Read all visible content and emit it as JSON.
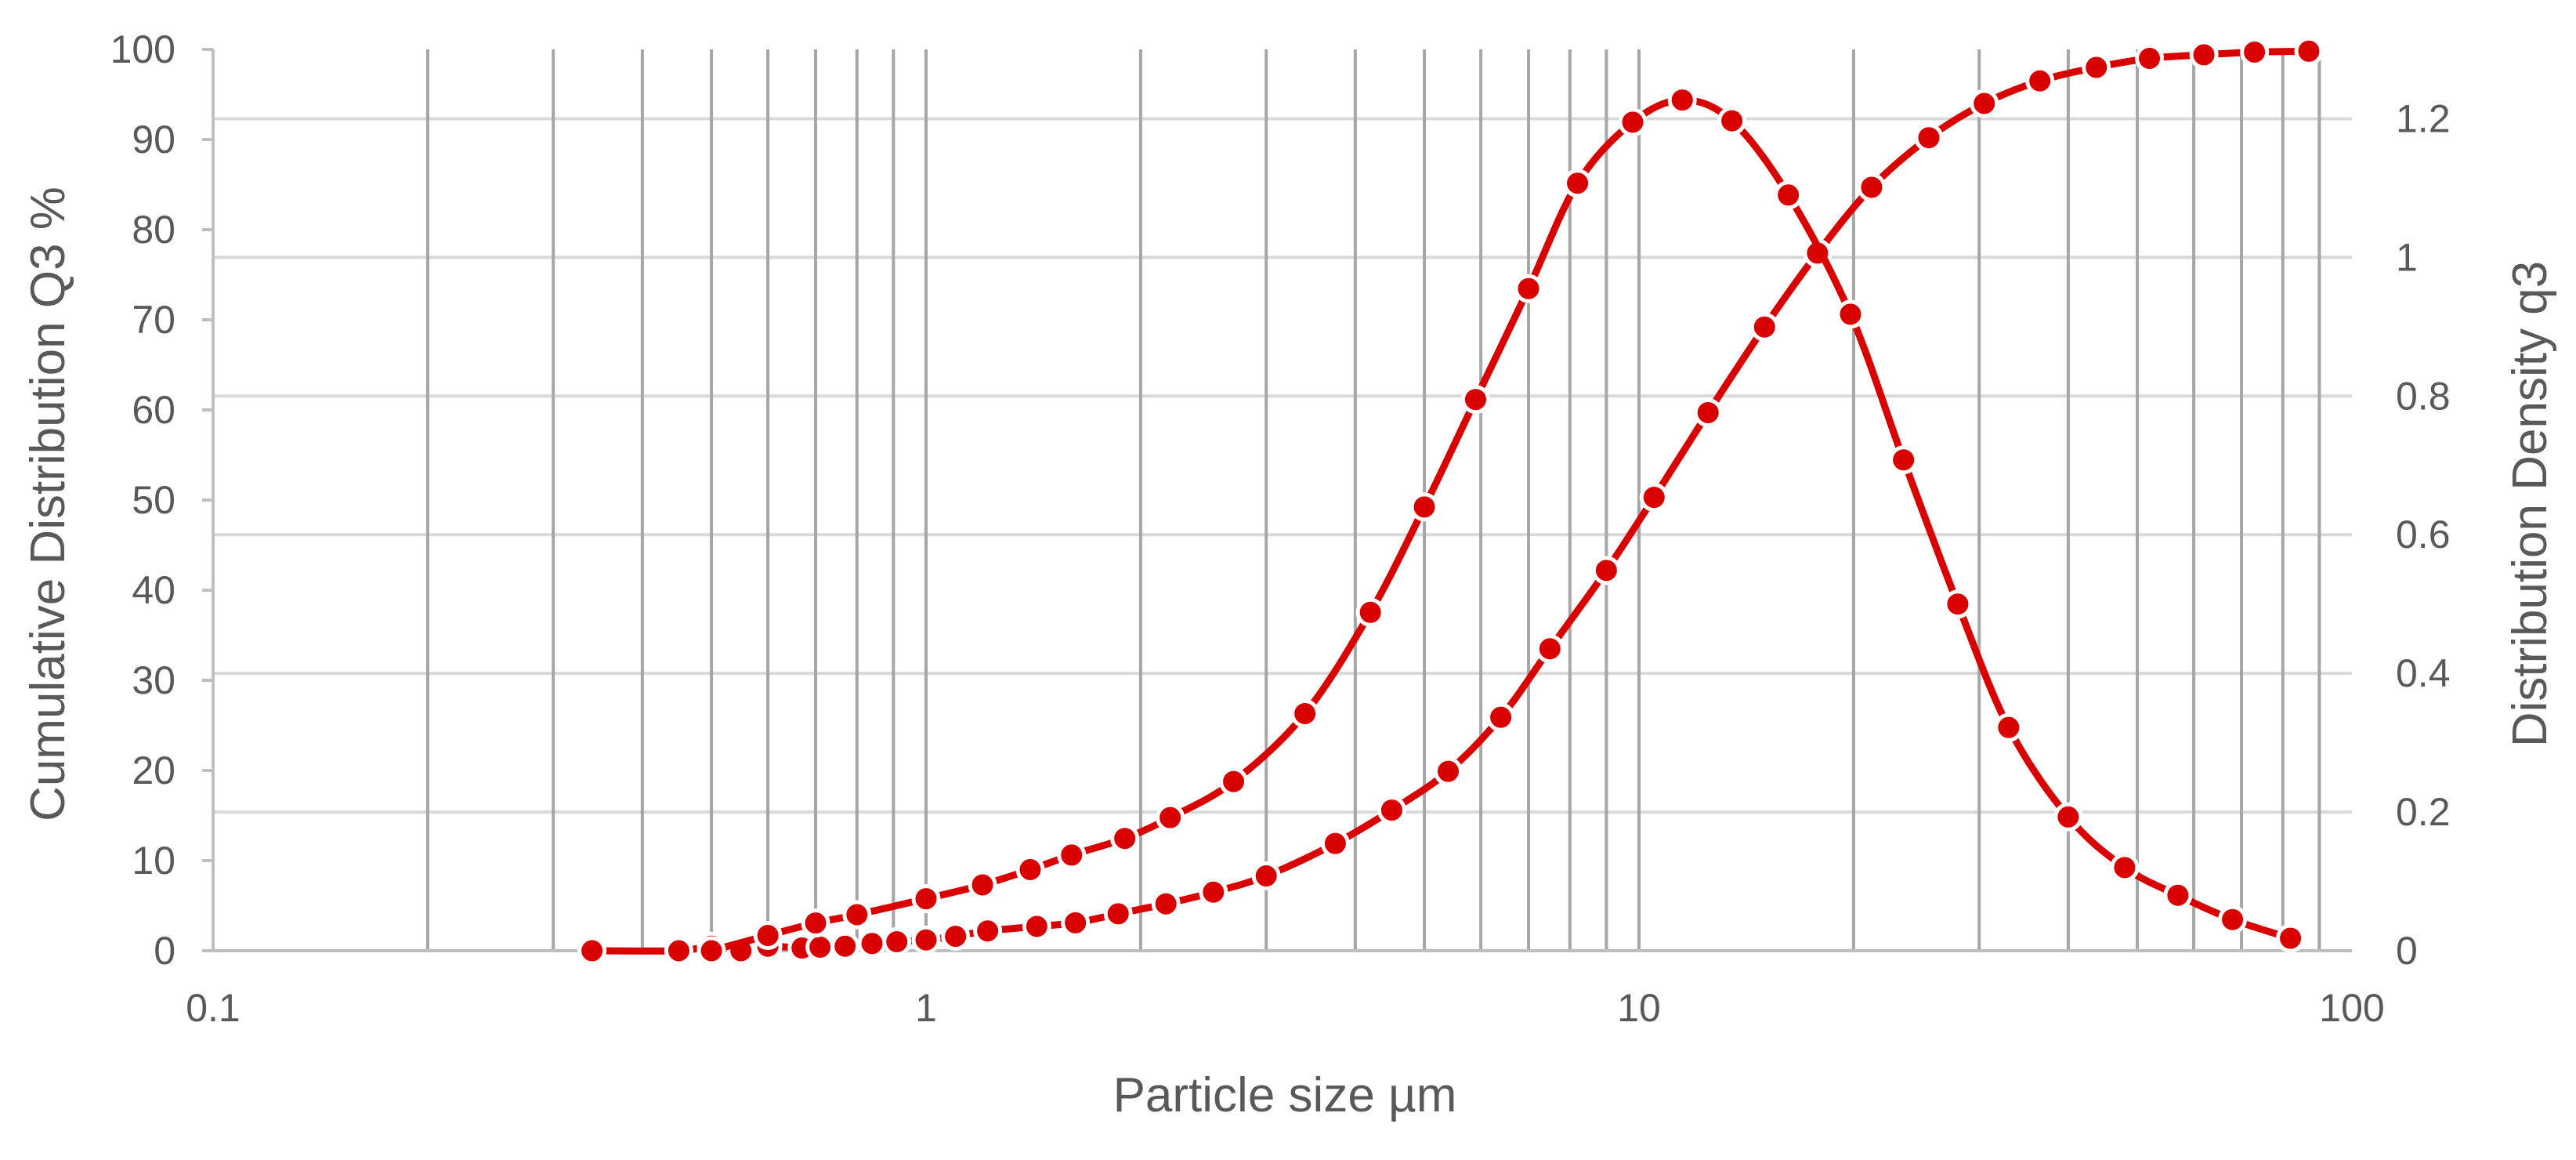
{
  "chart_data": {
    "type": "line",
    "title": "",
    "xlabel": "Particle size µm",
    "ylabel_left": "Cumulative Distribution Q3 %",
    "ylabel_right": "Distribution Density q3",
    "x_scale": "log",
    "xlim": [
      0.1,
      100
    ],
    "ylim_left": [
      0,
      100
    ],
    "ylim_right": [
      0,
      1.3
    ],
    "x_ticks": [
      {
        "value": 0.1,
        "label": "0.1"
      },
      {
        "value": 1,
        "label": "1"
      },
      {
        "value": 10,
        "label": "10"
      },
      {
        "value": 100,
        "label": "100"
      }
    ],
    "y_left_ticks": [
      "0",
      "10",
      "20",
      "30",
      "40",
      "50",
      "60",
      "70",
      "80",
      "90",
      "100"
    ],
    "y_right_ticks": [
      {
        "value": 0,
        "label": "0"
      },
      {
        "value": 0.2,
        "label": "0.2"
      },
      {
        "value": 0.4,
        "label": "0.4"
      },
      {
        "value": 0.6,
        "label": "0.6"
      },
      {
        "value": 0.8,
        "label": "0.8"
      },
      {
        "value": 1,
        "label": "1"
      },
      {
        "value": 1.2,
        "label": "1.2"
      }
    ],
    "grid": true,
    "legend": "none",
    "series": [
      {
        "axis": "left",
        "color": "#d90000",
        "x": [
          0.34,
          0.45,
          0.5,
          0.55,
          0.6,
          0.67,
          0.71,
          0.77,
          0.84,
          0.91,
          1.0,
          1.1,
          1.22,
          1.43,
          1.62,
          1.86,
          2.17,
          2.53,
          3.0,
          3.75,
          4.5,
          5.4,
          6.4,
          7.5,
          9.0,
          10.5,
          12.5,
          15.0,
          17.8,
          21.2,
          25.5,
          30.5,
          36.5,
          43.8,
          52.0,
          62.0,
          73.0,
          87.0
        ],
        "y": [
          0.0,
          0.0,
          0.5,
          0.0,
          0.5,
          0.3,
          0.4,
          0.5,
          0.8,
          1.0,
          1.2,
          1.6,
          2.2,
          2.7,
          3.1,
          4.1,
          5.2,
          6.5,
          8.3,
          11.9,
          15.6,
          19.9,
          25.9,
          33.5,
          42.2,
          50.3,
          59.7,
          69.2,
          77.4,
          84.7,
          90.2,
          94.0,
          96.5,
          98.0,
          99.0,
          99.4,
          99.7,
          99.8
        ]
      },
      {
        "axis": "right",
        "color": "#d90000",
        "x": [
          0.5,
          0.6,
          0.7,
          0.8,
          1.0,
          1.2,
          1.4,
          1.6,
          1.9,
          2.2,
          2.7,
          3.4,
          4.2,
          5.0,
          5.9,
          7.0,
          8.2,
          9.8,
          11.5,
          13.5,
          16.2,
          19.8,
          23.5,
          28.0,
          33.0,
          40.0,
          48.0,
          57.0,
          68.0,
          82.0
        ],
        "y": [
          0.0,
          0.022,
          0.04,
          0.052,
          0.075,
          0.095,
          0.117,
          0.138,
          0.162,
          0.192,
          0.244,
          0.342,
          0.488,
          0.64,
          0.795,
          0.955,
          1.107,
          1.195,
          1.227,
          1.197,
          1.09,
          0.918,
          0.708,
          0.5,
          0.322,
          0.193,
          0.12,
          0.08,
          0.045,
          0.018
        ]
      }
    ]
  }
}
